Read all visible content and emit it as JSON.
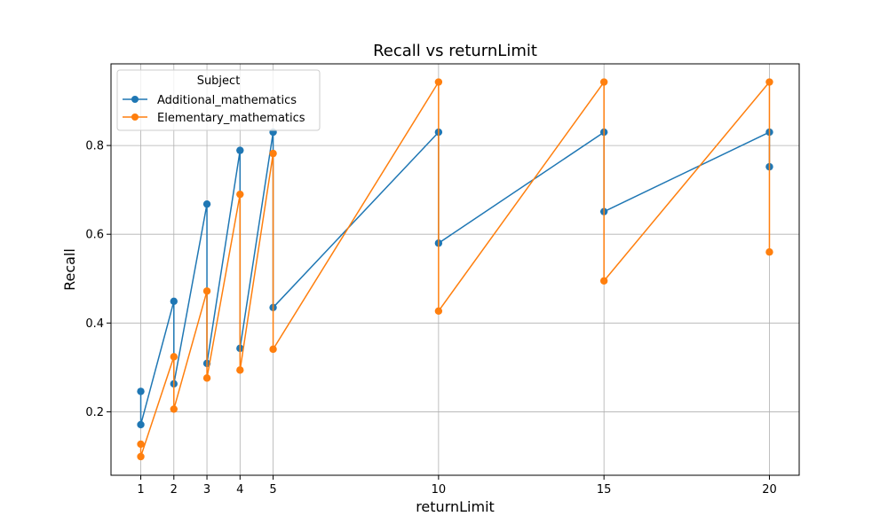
{
  "chart_data": {
    "type": "line",
    "title": "Recall vs returnLimit",
    "xlabel": "returnLimit",
    "ylabel": "Recall",
    "xlim": [
      0.1,
      20.9
    ],
    "ylim": [
      0.057,
      0.984
    ],
    "xticks": [
      1,
      2,
      3,
      4,
      5,
      10,
      15,
      20
    ],
    "yticks": [
      0.2,
      0.4,
      0.6,
      0.8
    ],
    "ytick_labels": [
      "0.2",
      "0.4",
      "0.6",
      "0.8"
    ],
    "grid": true,
    "legend": {
      "title": "Subject",
      "position": "top-left"
    },
    "series": [
      {
        "name": "Additional_mathematics",
        "color": "#1f77b4",
        "x": [
          1,
          1,
          2,
          2,
          3,
          3,
          4,
          4,
          5,
          5,
          10,
          10,
          15,
          15,
          20,
          20
        ],
        "y": [
          0.246,
          0.171,
          0.449,
          0.263,
          0.668,
          0.309,
          0.789,
          0.343,
          0.83,
          0.435,
          0.83,
          0.58,
          0.83,
          0.651,
          0.83,
          0.752
        ]
      },
      {
        "name": "Elementary_mathematics",
        "color": "#ff7f0e",
        "x": [
          1,
          1,
          2,
          2,
          3,
          3,
          4,
          4,
          5,
          5,
          10,
          10,
          15,
          15,
          20,
          20
        ],
        "y": [
          0.127,
          0.099,
          0.324,
          0.206,
          0.472,
          0.276,
          0.69,
          0.294,
          0.782,
          0.341,
          0.943,
          0.427,
          0.943,
          0.495,
          0.943,
          0.56
        ]
      }
    ]
  }
}
